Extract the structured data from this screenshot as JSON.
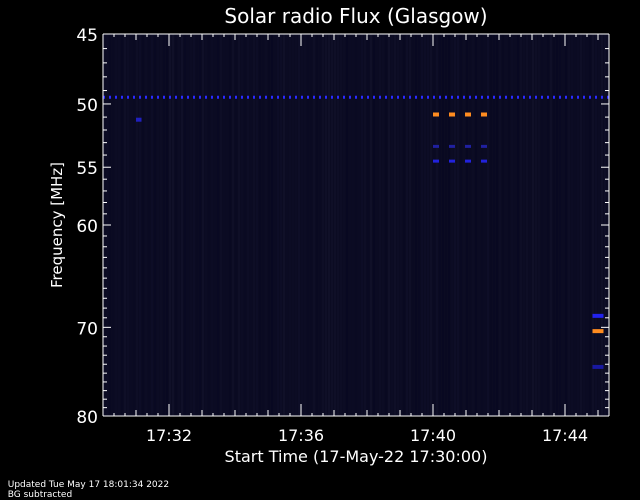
{
  "chart_data": {
    "type": "heatmap",
    "title": "Solar radio Flux (Glasgow)",
    "ylabel": "Frequency [MHz]",
    "xlabel": "Start Time (17-May-22 17:30:00)",
    "y_scale": "log",
    "ylim": [
      45,
      80
    ],
    "y_ticks": [
      45,
      50,
      55,
      60,
      70,
      80
    ],
    "xlim": [
      "17:30:00",
      "17:45:20"
    ],
    "x_ticks": [
      "17:32",
      "17:36",
      "17:40",
      "17:44"
    ],
    "background_color": "#0b0b22",
    "features": [
      {
        "type": "dashed-band",
        "freq_mhz": 49.5,
        "t_start": "17:30:00",
        "t_end": "17:45:20",
        "color": "#2a2aff"
      },
      {
        "type": "blob",
        "freq_mhz": 51.2,
        "t_start": "17:31:00",
        "t_end": "17:31:10",
        "color": "#2020c0"
      },
      {
        "type": "dashed-band",
        "freq_mhz": 50.8,
        "t_start": "17:40:00",
        "t_end": "17:41:50",
        "color": "#ff8c20"
      },
      {
        "type": "dashed-band",
        "freq_mhz": 53.3,
        "t_start": "17:40:00",
        "t_end": "17:41:50",
        "color": "#2020a0"
      },
      {
        "type": "dashed-band",
        "freq_mhz": 54.5,
        "t_start": "17:40:00",
        "t_end": "17:41:50",
        "color": "#2222dd"
      },
      {
        "type": "blob",
        "freq_mhz": 68.8,
        "t_start": "17:44:50",
        "t_end": "17:45:10",
        "color": "#2222ee"
      },
      {
        "type": "blob",
        "freq_mhz": 70.4,
        "t_start": "17:44:50",
        "t_end": "17:45:10",
        "color": "#ff8c20"
      },
      {
        "type": "blob",
        "freq_mhz": 74.3,
        "t_start": "17:44:50",
        "t_end": "17:45:10",
        "color": "#1818a0"
      }
    ]
  },
  "footer": {
    "updated": "Updated Tue May 17 18:01:34 2022",
    "note": "BG subtracted"
  }
}
